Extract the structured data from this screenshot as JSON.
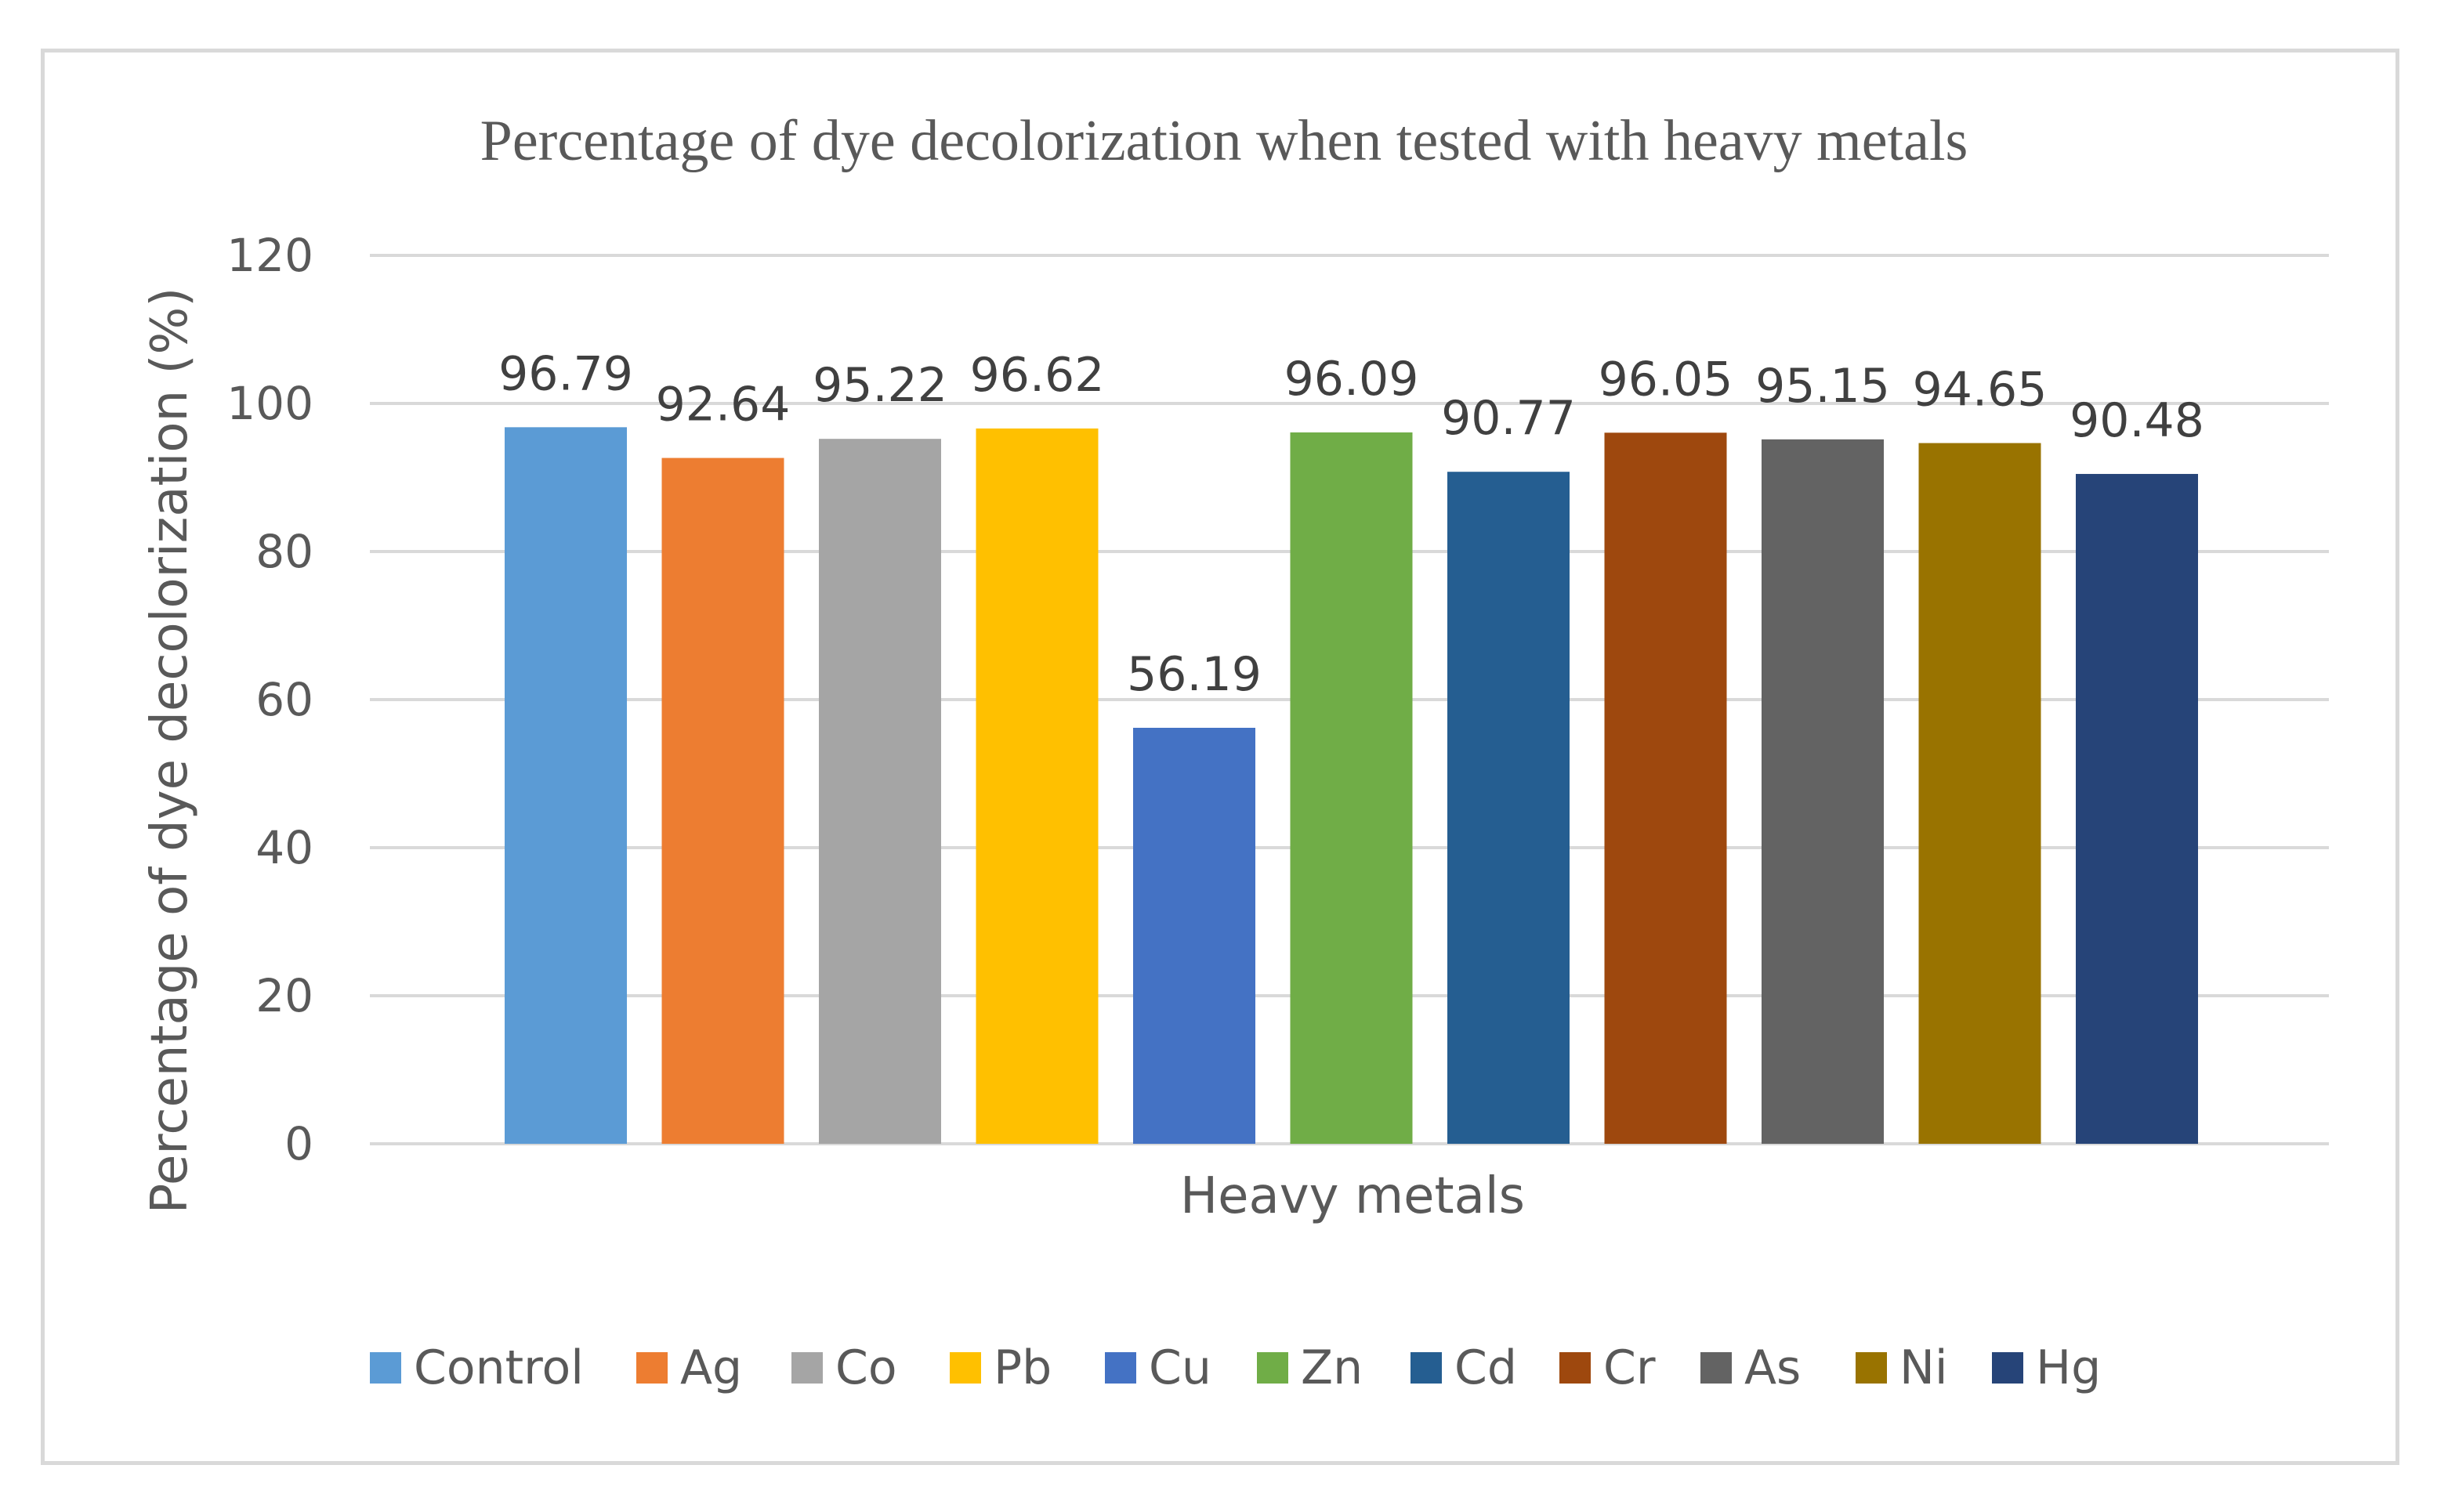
{
  "chart_data": {
    "type": "bar",
    "title": "Percentage of dye decolorization when tested with heavy metals",
    "xlabel": "Heavy metals",
    "ylabel": "Percentage of dye decolorization (%)",
    "ylim": [
      0,
      120
    ],
    "yticks": [
      0,
      20,
      40,
      60,
      80,
      100,
      120
    ],
    "grid": true,
    "legend_position": "bottom",
    "series": [
      {
        "name": "Control",
        "value": 96.79,
        "label": "96.79",
        "color": "#5b9bd5"
      },
      {
        "name": "Ag",
        "value": 92.64,
        "label": "92.64",
        "color": "#ed7d31"
      },
      {
        "name": "Co",
        "value": 95.22,
        "label": "95.22",
        "color": "#a5a5a5"
      },
      {
        "name": "Pb",
        "value": 96.62,
        "label": "96.62",
        "color": "#ffc000"
      },
      {
        "name": "Cu",
        "value": 56.19,
        "label": "56.19",
        "color": "#4472c4"
      },
      {
        "name": "Zn",
        "value": 96.09,
        "label": "96.09",
        "color": "#70ad47"
      },
      {
        "name": "Cd",
        "value": 90.77,
        "label": "90.77",
        "color": "#255e91"
      },
      {
        "name": "Cr",
        "value": 96.05,
        "label": "96.05",
        "color": "#9e480e"
      },
      {
        "name": "As",
        "value": 95.15,
        "label": "95.15",
        "color": "#636363"
      },
      {
        "name": "Ni",
        "value": 94.65,
        "label": "94.65",
        "color": "#997300"
      },
      {
        "name": "Hg",
        "value": 90.48,
        "label": "90.48",
        "color": "#264478"
      }
    ]
  }
}
